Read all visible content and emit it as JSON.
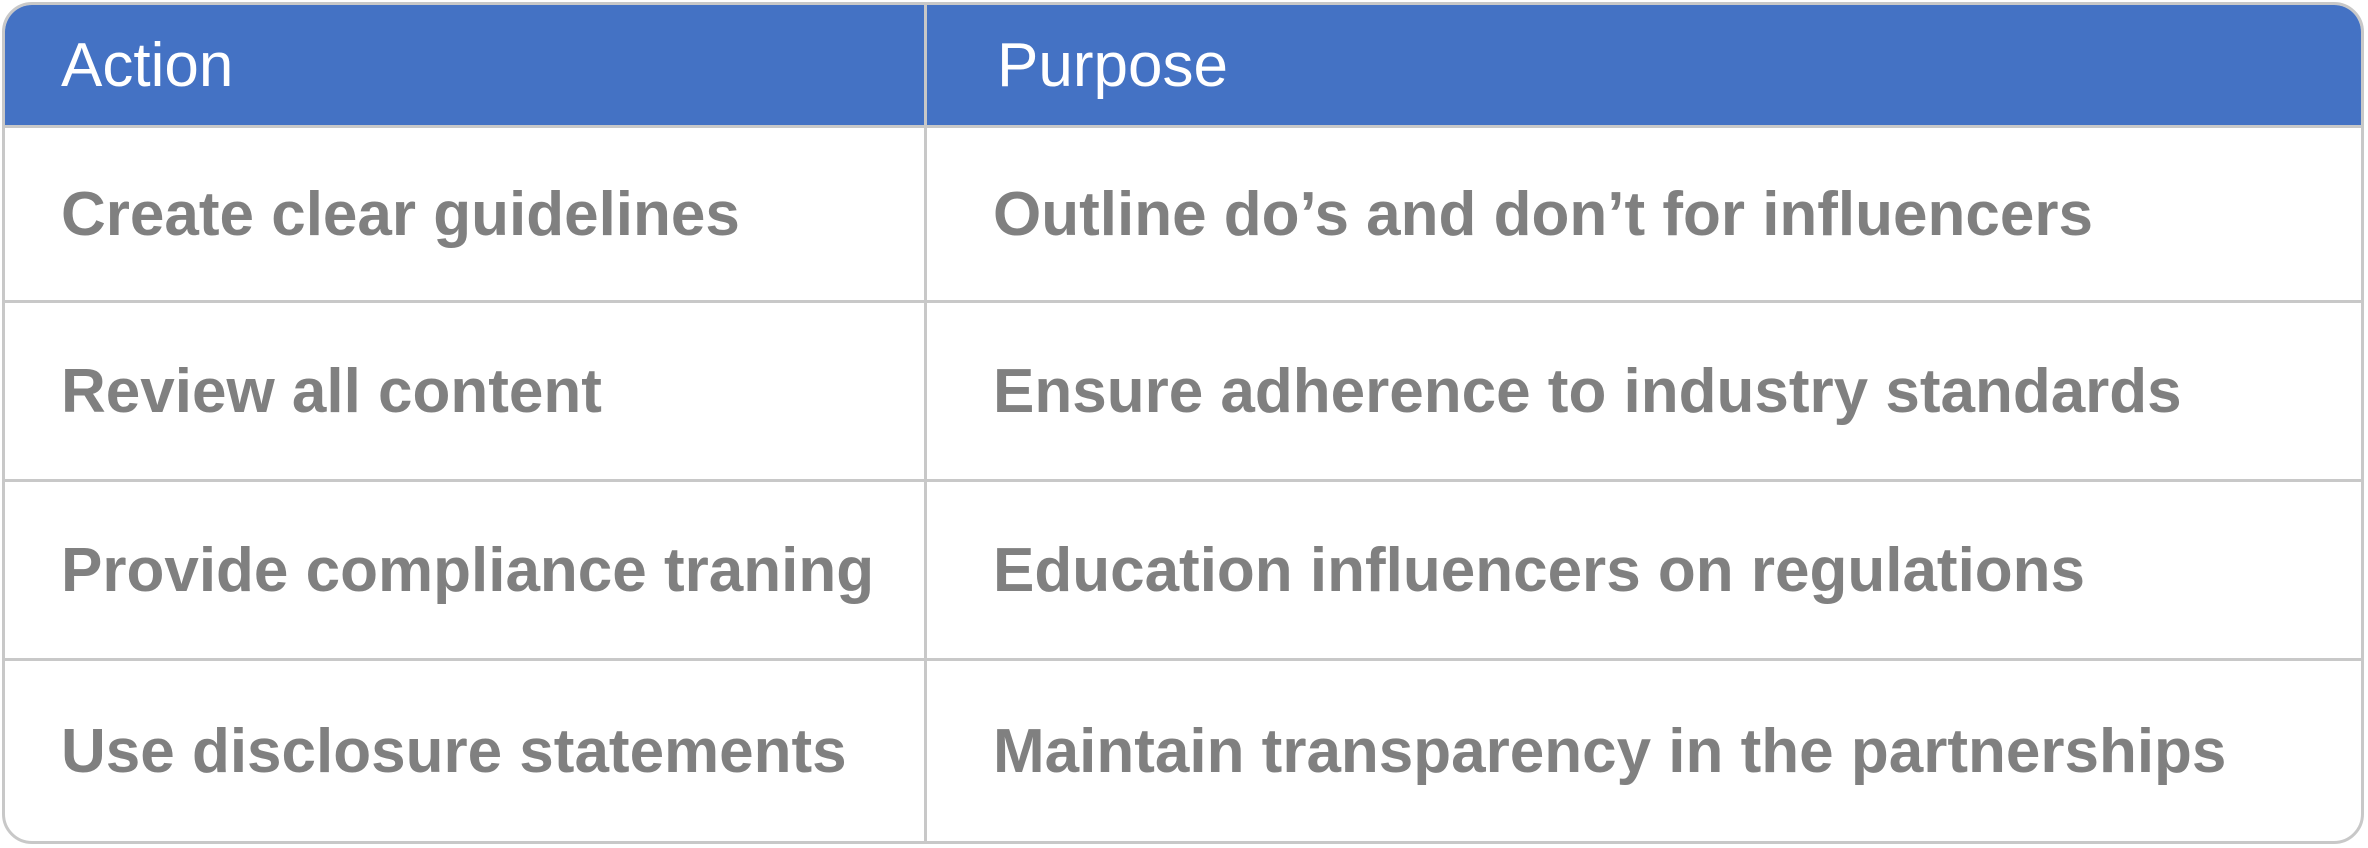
{
  "table": {
    "headers": {
      "action": "Action",
      "purpose": "Purpose"
    },
    "rows": [
      {
        "action": "Create clear guidelines",
        "purpose": "Outline do’s and don’t for influencers"
      },
      {
        "action": "Review all content",
        "purpose": "Ensure adherence to industry standards"
      },
      {
        "action": "Provide compliance traning",
        "purpose": "Education influencers on regulations"
      },
      {
        "action": "Use disclosure statements",
        "purpose": "Maintain transparency in the partnerships"
      }
    ],
    "colors": {
      "header_background": "#4472c4",
      "header_text": "#ffffff",
      "body_text": "#808080",
      "border": "#c8c8c8"
    }
  }
}
